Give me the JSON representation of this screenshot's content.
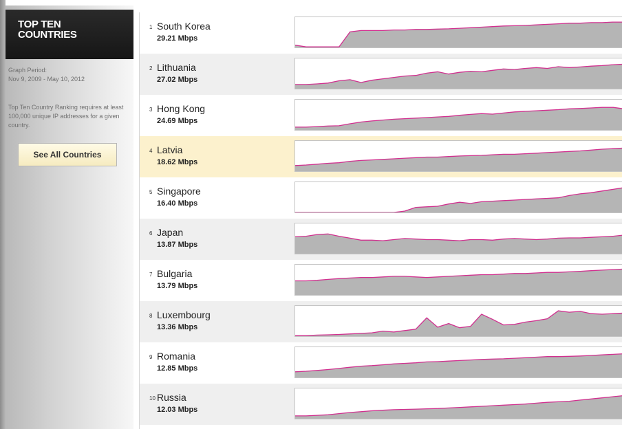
{
  "sidebar": {
    "title": "TOP TEN\nCOUNTRIES",
    "graph_period_label": "Graph Period:",
    "graph_period_value": "Nov 9, 2009 - May 10, 2012",
    "note": "Top Ten Country Ranking requires at least 100,000 unique IP addresses for a given country.",
    "see_all_label": "See All Countries"
  },
  "colors": {
    "line": "#d1308f",
    "fill": "#b5b5b5",
    "highlight": "#fcf1cd"
  },
  "countries": [
    {
      "rank": "1",
      "name": "South Korea",
      "speed": "29.21 Mbps",
      "trend": [
        0.08,
        0.02,
        0.02,
        0.02,
        0.02,
        0.55,
        0.6,
        0.6,
        0.6,
        0.62,
        0.62,
        0.64,
        0.64,
        0.65,
        0.66,
        0.68,
        0.7,
        0.72,
        0.74,
        0.76,
        0.77,
        0.78,
        0.8,
        0.82,
        0.84,
        0.86,
        0.86,
        0.88,
        0.88,
        0.9,
        0.9
      ]
    },
    {
      "rank": "2",
      "name": "Lithuania",
      "speed": "27.02 Mbps",
      "trend": [
        0.15,
        0.15,
        0.17,
        0.2,
        0.28,
        0.32,
        0.22,
        0.3,
        0.35,
        0.4,
        0.45,
        0.47,
        0.55,
        0.6,
        0.52,
        0.58,
        0.62,
        0.6,
        0.65,
        0.7,
        0.68,
        0.72,
        0.75,
        0.72,
        0.78,
        0.75,
        0.77,
        0.8,
        0.82,
        0.85,
        0.87
      ]
    },
    {
      "rank": "3",
      "name": "Hong Kong",
      "speed": "24.69 Mbps",
      "trend": [
        0.1,
        0.1,
        0.12,
        0.14,
        0.15,
        0.22,
        0.28,
        0.32,
        0.35,
        0.38,
        0.4,
        0.42,
        0.44,
        0.46,
        0.48,
        0.52,
        0.55,
        0.58,
        0.56,
        0.6,
        0.64,
        0.66,
        0.68,
        0.7,
        0.72,
        0.75,
        0.76,
        0.78,
        0.8,
        0.8,
        0.75
      ]
    },
    {
      "rank": "4",
      "name": "Latvia",
      "speed": "18.62 Mbps",
      "trend": [
        0.2,
        0.22,
        0.25,
        0.28,
        0.3,
        0.35,
        0.38,
        0.4,
        0.42,
        0.44,
        0.46,
        0.48,
        0.5,
        0.5,
        0.52,
        0.54,
        0.55,
        0.56,
        0.58,
        0.6,
        0.6,
        0.62,
        0.64,
        0.66,
        0.68,
        0.7,
        0.72,
        0.75,
        0.78,
        0.8,
        0.82
      ]
    },
    {
      "rank": "5",
      "name": "Singapore",
      "speed": "16.40 Mbps",
      "trend": [
        0.0,
        0.0,
        0.0,
        0.0,
        0.0,
        0.0,
        0.0,
        0.0,
        0.0,
        0.0,
        0.05,
        0.18,
        0.2,
        0.22,
        0.3,
        0.36,
        0.32,
        0.38,
        0.4,
        0.42,
        0.44,
        0.46,
        0.48,
        0.5,
        0.52,
        0.6,
        0.66,
        0.7,
        0.76,
        0.82,
        0.88
      ]
    },
    {
      "rank": "6",
      "name": "Japan",
      "speed": "13.87 Mbps",
      "trend": [
        0.6,
        0.62,
        0.68,
        0.7,
        0.62,
        0.55,
        0.48,
        0.48,
        0.46,
        0.5,
        0.54,
        0.52,
        0.5,
        0.5,
        0.48,
        0.46,
        0.5,
        0.5,
        0.48,
        0.52,
        0.54,
        0.52,
        0.5,
        0.52,
        0.55,
        0.56,
        0.56,
        0.58,
        0.6,
        0.62,
        0.66
      ]
    },
    {
      "rank": "7",
      "name": "Bulgaria",
      "speed": "13.79 Mbps",
      "trend": [
        0.5,
        0.5,
        0.52,
        0.55,
        0.58,
        0.6,
        0.62,
        0.62,
        0.64,
        0.66,
        0.66,
        0.64,
        0.62,
        0.64,
        0.66,
        0.68,
        0.7,
        0.72,
        0.72,
        0.74,
        0.76,
        0.76,
        0.78,
        0.8,
        0.8,
        0.82,
        0.84,
        0.86,
        0.88,
        0.9,
        0.92
      ]
    },
    {
      "rank": "8",
      "name": "Luxembourg",
      "speed": "13.36 Mbps",
      "trend": [
        0.02,
        0.02,
        0.04,
        0.05,
        0.06,
        0.08,
        0.1,
        0.12,
        0.18,
        0.15,
        0.2,
        0.25,
        0.65,
        0.32,
        0.45,
        0.3,
        0.35,
        0.78,
        0.6,
        0.4,
        0.42,
        0.5,
        0.55,
        0.62,
        0.9,
        0.85,
        0.88,
        0.8,
        0.78,
        0.8,
        0.82
      ]
    },
    {
      "rank": "9",
      "name": "Romania",
      "speed": "12.85 Mbps",
      "trend": [
        0.2,
        0.22,
        0.25,
        0.28,
        0.32,
        0.36,
        0.4,
        0.42,
        0.45,
        0.48,
        0.5,
        0.52,
        0.55,
        0.56,
        0.58,
        0.6,
        0.62,
        0.64,
        0.65,
        0.66,
        0.68,
        0.7,
        0.72,
        0.74,
        0.74,
        0.75,
        0.76,
        0.78,
        0.8,
        0.82,
        0.84
      ]
    },
    {
      "rank": "10",
      "name": "Russia",
      "speed": "12.03 Mbps",
      "trend": [
        0.1,
        0.1,
        0.12,
        0.14,
        0.18,
        0.22,
        0.25,
        0.28,
        0.3,
        0.32,
        0.33,
        0.34,
        0.35,
        0.36,
        0.38,
        0.4,
        0.42,
        0.44,
        0.46,
        0.48,
        0.5,
        0.52,
        0.55,
        0.58,
        0.6,
        0.62,
        0.66,
        0.7,
        0.74,
        0.78,
        0.82
      ]
    }
  ]
}
